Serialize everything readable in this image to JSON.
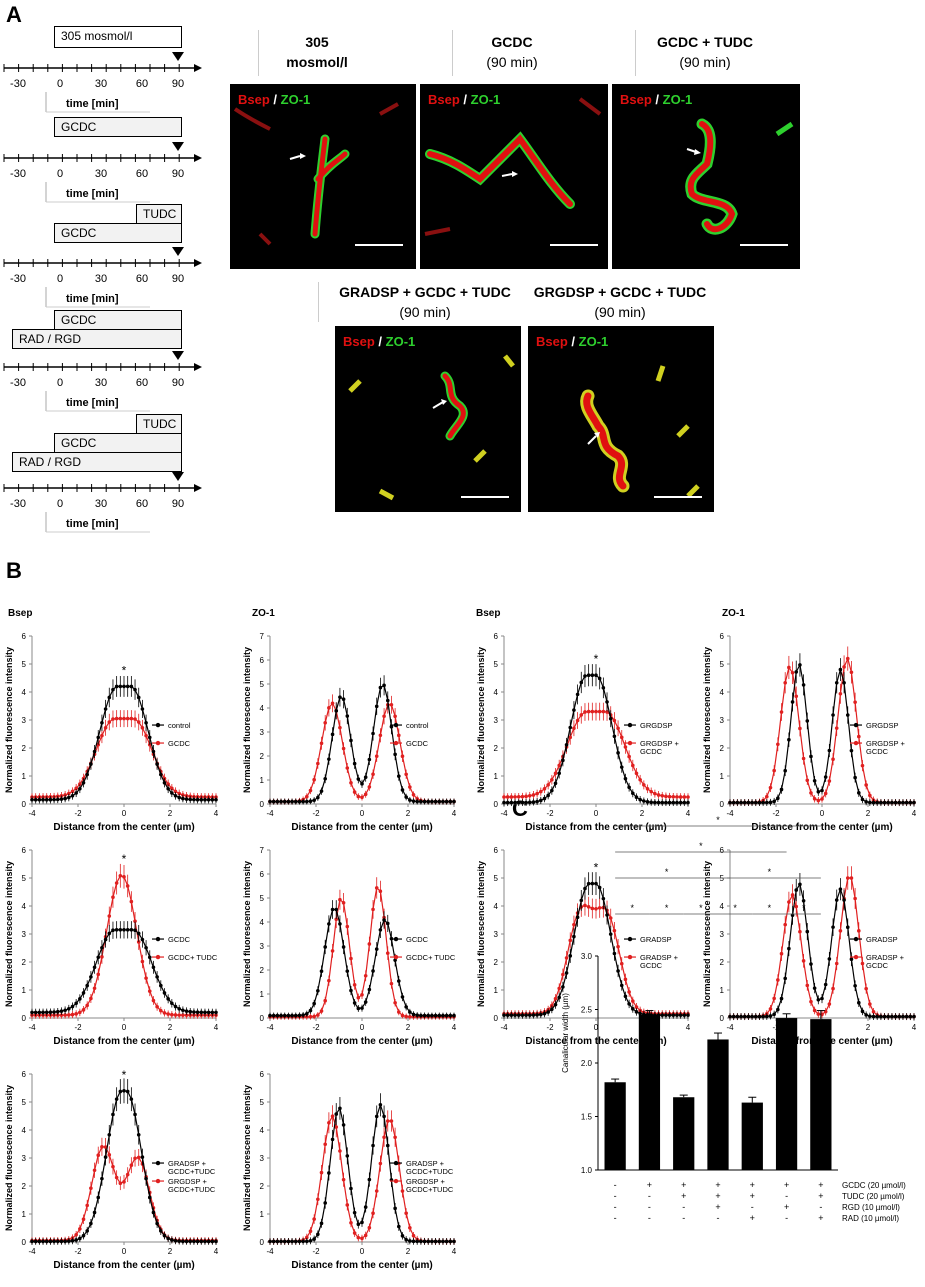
{
  "panel_letters": {
    "a": "A",
    "b": "B",
    "c": "C"
  },
  "timeline": {
    "ticks": [
      "-30",
      "0",
      "30",
      "60",
      "90"
    ],
    "time_label": "time [min]",
    "rows": [
      {
        "boxes": [
          "305 mosmol/l"
        ]
      },
      {
        "boxes": [
          "GCDC"
        ]
      },
      {
        "boxes": [
          "TUDC",
          "GCDC"
        ]
      },
      {
        "boxes": [
          "GCDC",
          "RAD / RGD"
        ]
      },
      {
        "boxes": [
          "TUDC",
          "GCDC",
          "RAD / RGD"
        ]
      }
    ]
  },
  "micrographs": {
    "label_bsep": "Bsep",
    "label_sep": "/",
    "label_zo1": "ZO-1",
    "panels": [
      {
        "title1": "305",
        "title2": "mosmol/l"
      },
      {
        "title1": "GCDC",
        "title2": "(90 min)"
      },
      {
        "title1": "GCDC + TUDC",
        "title2": "(90 min)"
      },
      {
        "title1": "GRADSP + GCDC + TUDC",
        "title2": "(90 min)"
      },
      {
        "title1": "GRGDSP + GCDC + TUDC",
        "title2": "(90 min)"
      }
    ]
  },
  "colors": {
    "control": "#000000",
    "treated": "#e02020",
    "red_stain": "#e01010",
    "green_stain": "#2ed02e"
  },
  "profile_common": {
    "xlabel": "Distance from the center (µm)",
    "ylabel": "Normalized fluorescence intensity"
  },
  "chart_data": [
    {
      "type": "line",
      "title": "Bsep",
      "xlim": [
        -4,
        4
      ],
      "ylim": [
        0,
        6
      ],
      "xticks": [
        "-4",
        "-2",
        "0",
        "2",
        "4"
      ],
      "yticks": [
        "0",
        "1",
        "2",
        "3",
        "4",
        "5",
        "6"
      ],
      "annotation": "*",
      "series": [
        {
          "name": "control",
          "peaks": [
            [
              0,
              4.2
            ]
          ],
          "sigma": 0.75,
          "flat": 0.6,
          "base": 0.15
        },
        {
          "name": "GCDC",
          "peaks": [
            [
              0,
              3.05
            ]
          ],
          "sigma": 0.8,
          "flat": 0.8,
          "base": 0.25
        }
      ]
    },
    {
      "type": "line",
      "title": "ZO-1",
      "xlim": [
        -4,
        4
      ],
      "ylim": [
        0,
        7
      ],
      "xticks": [
        "-4",
        "-2",
        "0",
        "2",
        "4"
      ],
      "yticks": [
        "0",
        "1",
        "2",
        "3",
        "4",
        "5",
        "6",
        "7"
      ],
      "series": [
        {
          "name": "control",
          "peaks": [
            [
              -0.9,
              4.5
            ],
            [
              0.9,
              5.0
            ]
          ],
          "sigma": 0.4,
          "base": 0.1
        },
        {
          "name": "GCDC",
          "peaks": [
            [
              -1.3,
              4.2
            ],
            [
              1.2,
              4.2
            ]
          ],
          "sigma": 0.45,
          "base": 0.1
        }
      ]
    },
    {
      "type": "line",
      "title": "Bsep",
      "xlim": [
        -4,
        4
      ],
      "ylim": [
        0,
        6
      ],
      "xticks": [
        "-4",
        "-2",
        "0",
        "2",
        "4"
      ],
      "yticks": [
        "0",
        "1",
        "2",
        "3",
        "4",
        "5",
        "6"
      ],
      "annotation": "*",
      "series": [
        {
          "name": "GRGDSP",
          "peaks": [
            [
              -0.2,
              4.6
            ]
          ],
          "sigma": 0.7,
          "flat": 0.4,
          "base": 0.05
        },
        {
          "name": "GRGDSP + GCDC",
          "peaks": [
            [
              0,
              3.3
            ]
          ],
          "sigma": 0.85,
          "flat": 0.8,
          "base": 0.25
        }
      ]
    },
    {
      "type": "line",
      "title": "ZO-1",
      "xlim": [
        -4,
        4
      ],
      "ylim": [
        0,
        6
      ],
      "xticks": [
        "-4",
        "-2",
        "0",
        "2",
        "4"
      ],
      "yticks": [
        "0",
        "1",
        "2",
        "3",
        "4",
        "5",
        "6"
      ],
      "series": [
        {
          "name": "GRGDSP",
          "peaks": [
            [
              -1.0,
              5.0
            ],
            [
              0.8,
              4.8
            ]
          ],
          "sigma": 0.35,
          "base": 0.05
        },
        {
          "name": "GRGDSP + GCDC",
          "peaks": [
            [
              -1.4,
              4.9
            ],
            [
              1.1,
              5.2
            ]
          ],
          "sigma": 0.4,
          "base": 0.05
        }
      ]
    },
    {
      "type": "line",
      "title": "",
      "xlim": [
        -4,
        4
      ],
      "ylim": [
        0,
        6
      ],
      "xticks": [
        "-4",
        "-2",
        "0",
        "2",
        "4"
      ],
      "yticks": [
        "0",
        "1",
        "2",
        "3",
        "4",
        "5",
        "6"
      ],
      "annotation": "*",
      "series": [
        {
          "name": "GCDC",
          "peaks": [
            [
              0,
              3.15
            ]
          ],
          "sigma": 0.8,
          "flat": 0.8,
          "base": 0.2
        },
        {
          "name": "GCDC+ TUDC",
          "peaks": [
            [
              -0.1,
              5.1
            ]
          ],
          "sigma": 0.65,
          "base": 0.1
        }
      ]
    },
    {
      "type": "line",
      "title": "",
      "xlim": [
        -4,
        4
      ],
      "ylim": [
        0,
        7
      ],
      "xticks": [
        "-4",
        "-2",
        "0",
        "2",
        "4"
      ],
      "yticks": [
        "0",
        "1",
        "2",
        "3",
        "4",
        "5",
        "6",
        "7"
      ],
      "series": [
        {
          "name": "GCDC",
          "peaks": [
            [
              -1.2,
              4.6
            ],
            [
              1.0,
              4.1
            ]
          ],
          "sigma": 0.42,
          "base": 0.1
        },
        {
          "name": "GCDC+ TUDC",
          "peaks": [
            [
              -0.9,
              5.0
            ],
            [
              0.7,
              5.5
            ]
          ],
          "sigma": 0.35,
          "base": 0.05
        }
      ]
    },
    {
      "type": "line",
      "title": "",
      "xlim": [
        -4,
        4
      ],
      "ylim": [
        0,
        6
      ],
      "xticks": [
        "-4",
        "-2",
        "0",
        "2",
        "4"
      ],
      "yticks": [
        "0",
        "1",
        "2",
        "3",
        "4",
        "5",
        "6"
      ],
      "annotation": "*",
      "series": [
        {
          "name": "GRADSP",
          "peaks": [
            [
              -0.15,
              4.8
            ]
          ],
          "sigma": 0.65,
          "flat": 0.3,
          "base": 0.1
        },
        {
          "name": "GRADSP + GCDC",
          "peaks": [
            [
              -0.7,
              3.6
            ],
            [
              0.5,
              3.5
            ]
          ],
          "sigma": 0.55,
          "base": 0.15
        }
      ]
    },
    {
      "type": "line",
      "title": "",
      "xlim": [
        -4,
        4
      ],
      "ylim": [
        0,
        6
      ],
      "xticks": [
        "-4",
        "-2",
        "0",
        "2",
        "4"
      ],
      "yticks": [
        "0",
        "1",
        "2",
        "3",
        "4",
        "5",
        "6"
      ],
      "series": [
        {
          "name": "GRADSP",
          "peaks": [
            [
              -1.0,
              4.8
            ],
            [
              0.8,
              4.6
            ]
          ],
          "sigma": 0.38,
          "base": 0.05
        },
        {
          "name": "GRADSP + GCDC",
          "peaks": [
            [
              -1.3,
              4.4
            ],
            [
              1.2,
              5.1
            ]
          ],
          "sigma": 0.4,
          "base": 0.05
        }
      ]
    },
    {
      "type": "line",
      "title": "",
      "xlim": [
        -4,
        4
      ],
      "ylim": [
        0,
        6
      ],
      "xticks": [
        "-4",
        "-2",
        "0",
        "2",
        "4"
      ],
      "yticks": [
        "0",
        "1",
        "2",
        "3",
        "4",
        "5",
        "6"
      ],
      "annotation": "*",
      "series": [
        {
          "name": "GRADSP + GCDC+TUDC",
          "peaks": [
            [
              0,
              5.4
            ]
          ],
          "sigma": 0.65,
          "flat": 0.2,
          "base": 0.02
        },
        {
          "name": "GRGDSP + GCDC+TUDC",
          "peaks": [
            [
              -0.9,
              3.4
            ],
            [
              0.6,
              3.0
            ]
          ],
          "sigma": 0.5,
          "base": 0.05
        }
      ]
    },
    {
      "type": "line",
      "title": "",
      "xlim": [
        -4,
        4
      ],
      "ylim": [
        0,
        6
      ],
      "xticks": [
        "-4",
        "-2",
        "0",
        "2",
        "4"
      ],
      "yticks": [
        "0",
        "1",
        "2",
        "3",
        "4",
        "5",
        "6"
      ],
      "series": [
        {
          "name": "GRADSP + GCDC+TUDC",
          "peaks": [
            [
              -1.0,
              4.8
            ],
            [
              0.8,
              4.9
            ]
          ],
          "sigma": 0.38,
          "base": 0.02
        },
        {
          "name": "GRGDSP + GCDC+TUDC",
          "peaks": [
            [
              -1.3,
              4.5
            ],
            [
              1.2,
              4.4
            ]
          ],
          "sigma": 0.42,
          "base": 0.02
        }
      ]
    },
    {
      "type": "bar",
      "ylabel": "Canalicular width (µm)",
      "ylim": [
        1.0,
        3.0
      ],
      "yticks": [
        "1.0",
        "1.5",
        "2.0",
        "2.5",
        "3.0"
      ],
      "values": [
        1.82,
        2.45,
        1.68,
        2.22,
        1.63,
        2.42,
        2.41
      ],
      "errors": [
        0.03,
        0.04,
        0.02,
        0.06,
        0.05,
        0.04,
        0.08
      ],
      "significance": [
        "*",
        "*",
        "*",
        "*",
        "*",
        "*",
        "*",
        "*",
        "*",
        "*"
      ],
      "treatment_rows": [
        {
          "label": "GCDC (20 µmol/l)",
          "marks": [
            "-",
            "+",
            "+",
            "+",
            "+",
            "+",
            "+"
          ]
        },
        {
          "label": "TUDC (20 µmol/l)",
          "marks": [
            "-",
            "-",
            "+",
            "+",
            "+",
            "-",
            "+"
          ]
        },
        {
          "label": "RGD (10 µmol/l)",
          "marks": [
            "-",
            "-",
            "-",
            "+",
            "-",
            "+",
            "-"
          ]
        },
        {
          "label": "RAD (10 µmol/l)",
          "marks": [
            "-",
            "-",
            "-",
            "-",
            "+",
            "-",
            "+"
          ]
        }
      ]
    }
  ]
}
